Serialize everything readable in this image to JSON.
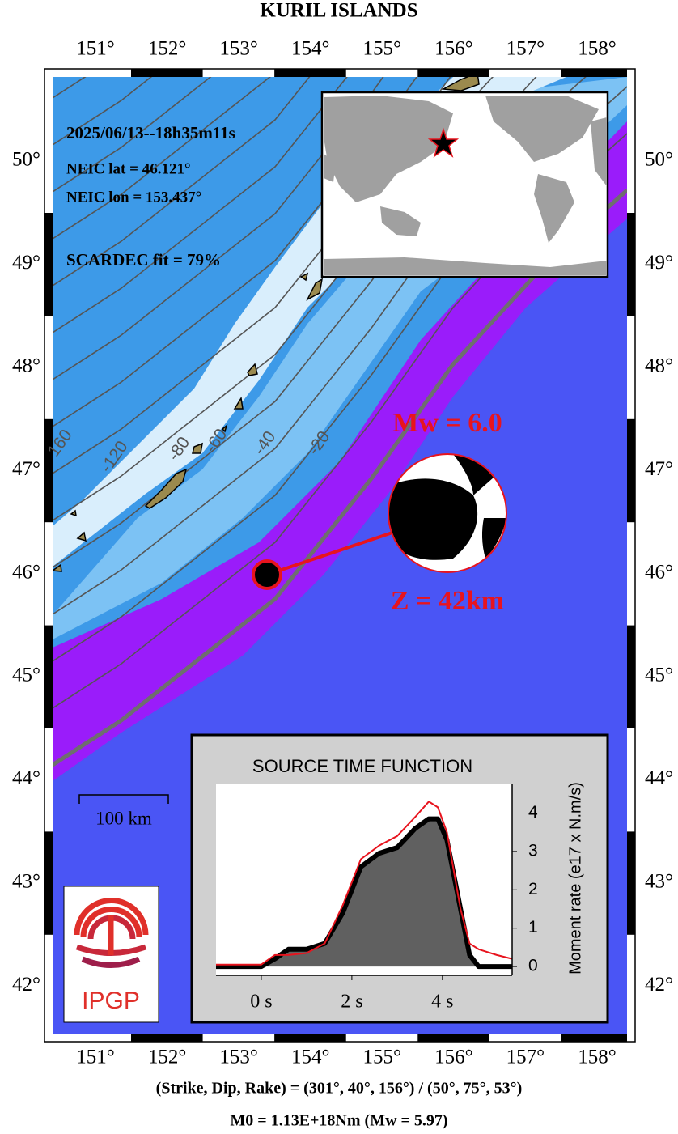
{
  "title": "KURIL ISLANDS",
  "map": {
    "lon_labels": [
      "151°",
      "152°",
      "153°",
      "154°",
      "155°",
      "156°",
      "157°",
      "158°"
    ],
    "lat_labels": [
      "50°",
      "49°",
      "48°",
      "47°",
      "46°",
      "45°",
      "44°",
      "43°",
      "42°"
    ],
    "contour_labels": [
      "160",
      "-120",
      "-80",
      "-60",
      "-40",
      "-20"
    ]
  },
  "event": {
    "origin_time": "2025/06/13--18h35m11s",
    "lat": "NEIC lat  = 46.121°",
    "lon": "NEIC lon = 153.437°",
    "fit": "SCARDEC fit = 79%",
    "magnitude": "Mw = 6.0",
    "depth": "Z =  42km"
  },
  "scale_bar": "100 km",
  "logo": "IPGP",
  "chart_data": {
    "type": "line",
    "title": "SOURCE TIME FUNCTION",
    "y_label": "Moment rate (e17 x N.m/s)",
    "x": [
      -1,
      -0.5,
      0,
      0.3,
      0.6,
      1,
      1.4,
      1.8,
      2.2,
      2.6,
      3.0,
      3.4,
      3.7,
      3.9,
      4.1,
      4.4,
      4.6,
      4.8,
      5.2,
      5.54
    ],
    "series": [
      {
        "color": "#000000",
        "fill": "#606060",
        "values": [
          0,
          0,
          0,
          0.2,
          0.45,
          0.45,
          0.6,
          1.4,
          2.6,
          2.95,
          3.1,
          3.6,
          3.85,
          3.85,
          3.3,
          1.5,
          0.3,
          0,
          0,
          0
        ]
      },
      {
        "color": "#e8141e",
        "values": [
          0.05,
          0.05,
          0.05,
          0.3,
          0.3,
          0.35,
          0.6,
          1.6,
          2.8,
          3.15,
          3.4,
          3.9,
          4.3,
          4.15,
          3.5,
          1.5,
          0.6,
          0.45,
          0.3,
          0.2
        ]
      }
    ],
    "xlim": [
      -1,
      5.54
    ],
    "ylim": [
      -0.23,
      4.77
    ],
    "xticks": [
      {
        "value": 0,
        "label": "0 s"
      },
      {
        "value": 2,
        "label": "2 s"
      },
      {
        "value": 4,
        "label": "4 s"
      }
    ],
    "yticks": [
      0,
      1,
      2,
      3,
      4
    ]
  },
  "focal": {
    "planes": "(Strike, Dip, Rake) = (301°, 40°, 156°) / (50°, 75°, 53°)",
    "moment": "M0 = 1.13E+18Nm  (Mw = 5.97)"
  }
}
